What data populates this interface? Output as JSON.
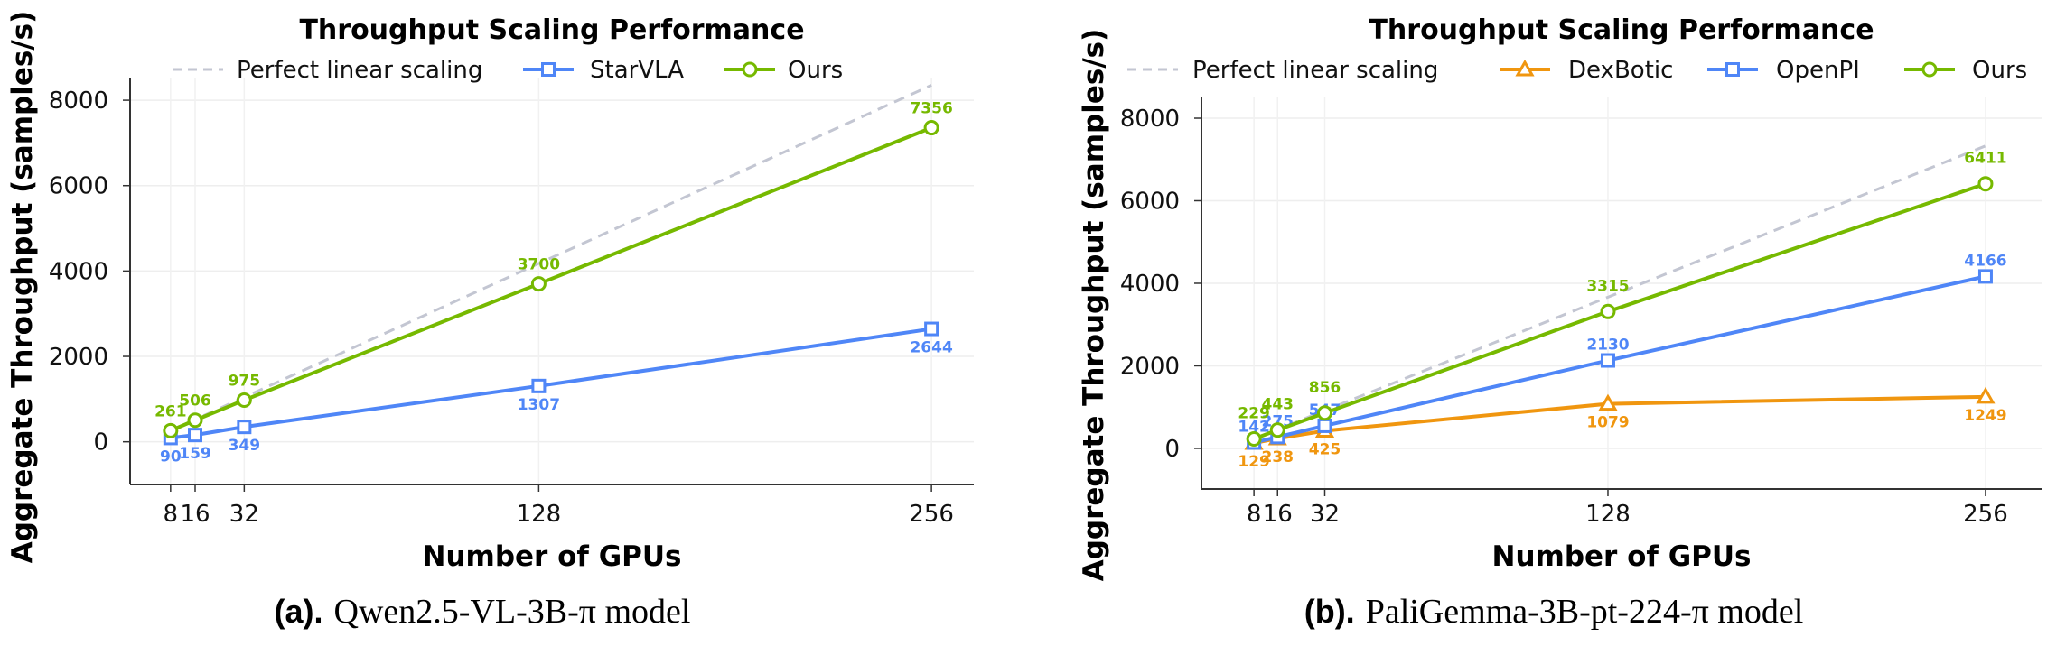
{
  "chart_data": [
    {
      "type": "line",
      "title": "Throughput Scaling Performance",
      "xlabel": "Number of GPUs",
      "ylabel": "Aggregate Throughput (samples/s)",
      "x": [
        8,
        16,
        32,
        128,
        256
      ],
      "xtick_labels": [
        "8",
        "16",
        "32",
        "128",
        "256"
      ],
      "yticks": [
        0,
        2000,
        4000,
        6000,
        8000
      ],
      "ytick_labels": [
        "0",
        "2000",
        "4000",
        "6000",
        "8000"
      ],
      "xlim": [
        -5.2,
        269.8
      ],
      "ylim": [
        -1000,
        8530
      ],
      "grid": true,
      "legend_placement": "top-center",
      "series": [
        {
          "name": "Perfect linear scaling",
          "values": [
            261,
            522,
            1044,
            4176,
            8352
          ],
          "color": "#c3c6d2",
          "style": "dashed",
          "marker": "none",
          "labels": false
        },
        {
          "name": "StarVLA",
          "values": [
            90,
            159,
            349,
            1307,
            2644
          ],
          "value_labels": [
            "90",
            "159",
            "349",
            "1307",
            "2644"
          ],
          "color": "#4f86f7",
          "style": "solid",
          "marker": "square",
          "labels": true
        },
        {
          "name": "Ours",
          "values": [
            261,
            506,
            975,
            3700,
            7356
          ],
          "value_labels": [
            "261",
            "506",
            "975",
            "3700",
            "7356"
          ],
          "color": "#76b900",
          "style": "solid",
          "marker": "circle",
          "labels": true
        }
      ],
      "caption": {
        "label": "(a).",
        "text": "Qwen2.5-VL-3B-π model"
      }
    },
    {
      "type": "line",
      "title": "Throughput Scaling Performance",
      "xlabel": "Number of GPUs",
      "ylabel": "Aggregate Throughput (samples/s)",
      "x": [
        8,
        16,
        32,
        128,
        256
      ],
      "xtick_labels": [
        "8",
        "16",
        "32",
        "128",
        "256"
      ],
      "yticks": [
        0,
        2000,
        4000,
        6000,
        8000
      ],
      "ytick_labels": [
        "0",
        "2000",
        "4000",
        "6000",
        "8000"
      ],
      "xlim": [
        -9.8,
        275
      ],
      "ylim": [
        -985,
        8525
      ],
      "grid": true,
      "legend_placement": "top-center",
      "series": [
        {
          "name": "Perfect linear scaling",
          "values": [
            229,
            458,
            916,
            3664,
            7328
          ],
          "color": "#c3c6d2",
          "style": "dashed",
          "marker": "none",
          "labels": false
        },
        {
          "name": "DexBotic",
          "values": [
            129,
            238,
            425,
            1079,
            1249
          ],
          "value_labels": [
            "129",
            "238",
            "425",
            "1079",
            "1249"
          ],
          "color": "#f0960f",
          "style": "solid",
          "marker": "triangle",
          "labels": true
        },
        {
          "name": "OpenPI",
          "values": [
            142,
            275,
            547,
            2130,
            4166
          ],
          "value_labels": [
            "142",
            "275",
            "547",
            "2130",
            "4166"
          ],
          "color": "#4f86f7",
          "style": "solid",
          "marker": "square",
          "labels": true
        },
        {
          "name": "Ours",
          "values": [
            229,
            443,
            856,
            3315,
            6411
          ],
          "value_labels": [
            "229",
            "443",
            "856",
            "3315",
            "6411"
          ],
          "color": "#76b900",
          "style": "solid",
          "marker": "circle",
          "labels": true
        }
      ],
      "caption": {
        "label": "(b).",
        "text": "PaliGemma-3B-pt-224-π model"
      }
    }
  ]
}
